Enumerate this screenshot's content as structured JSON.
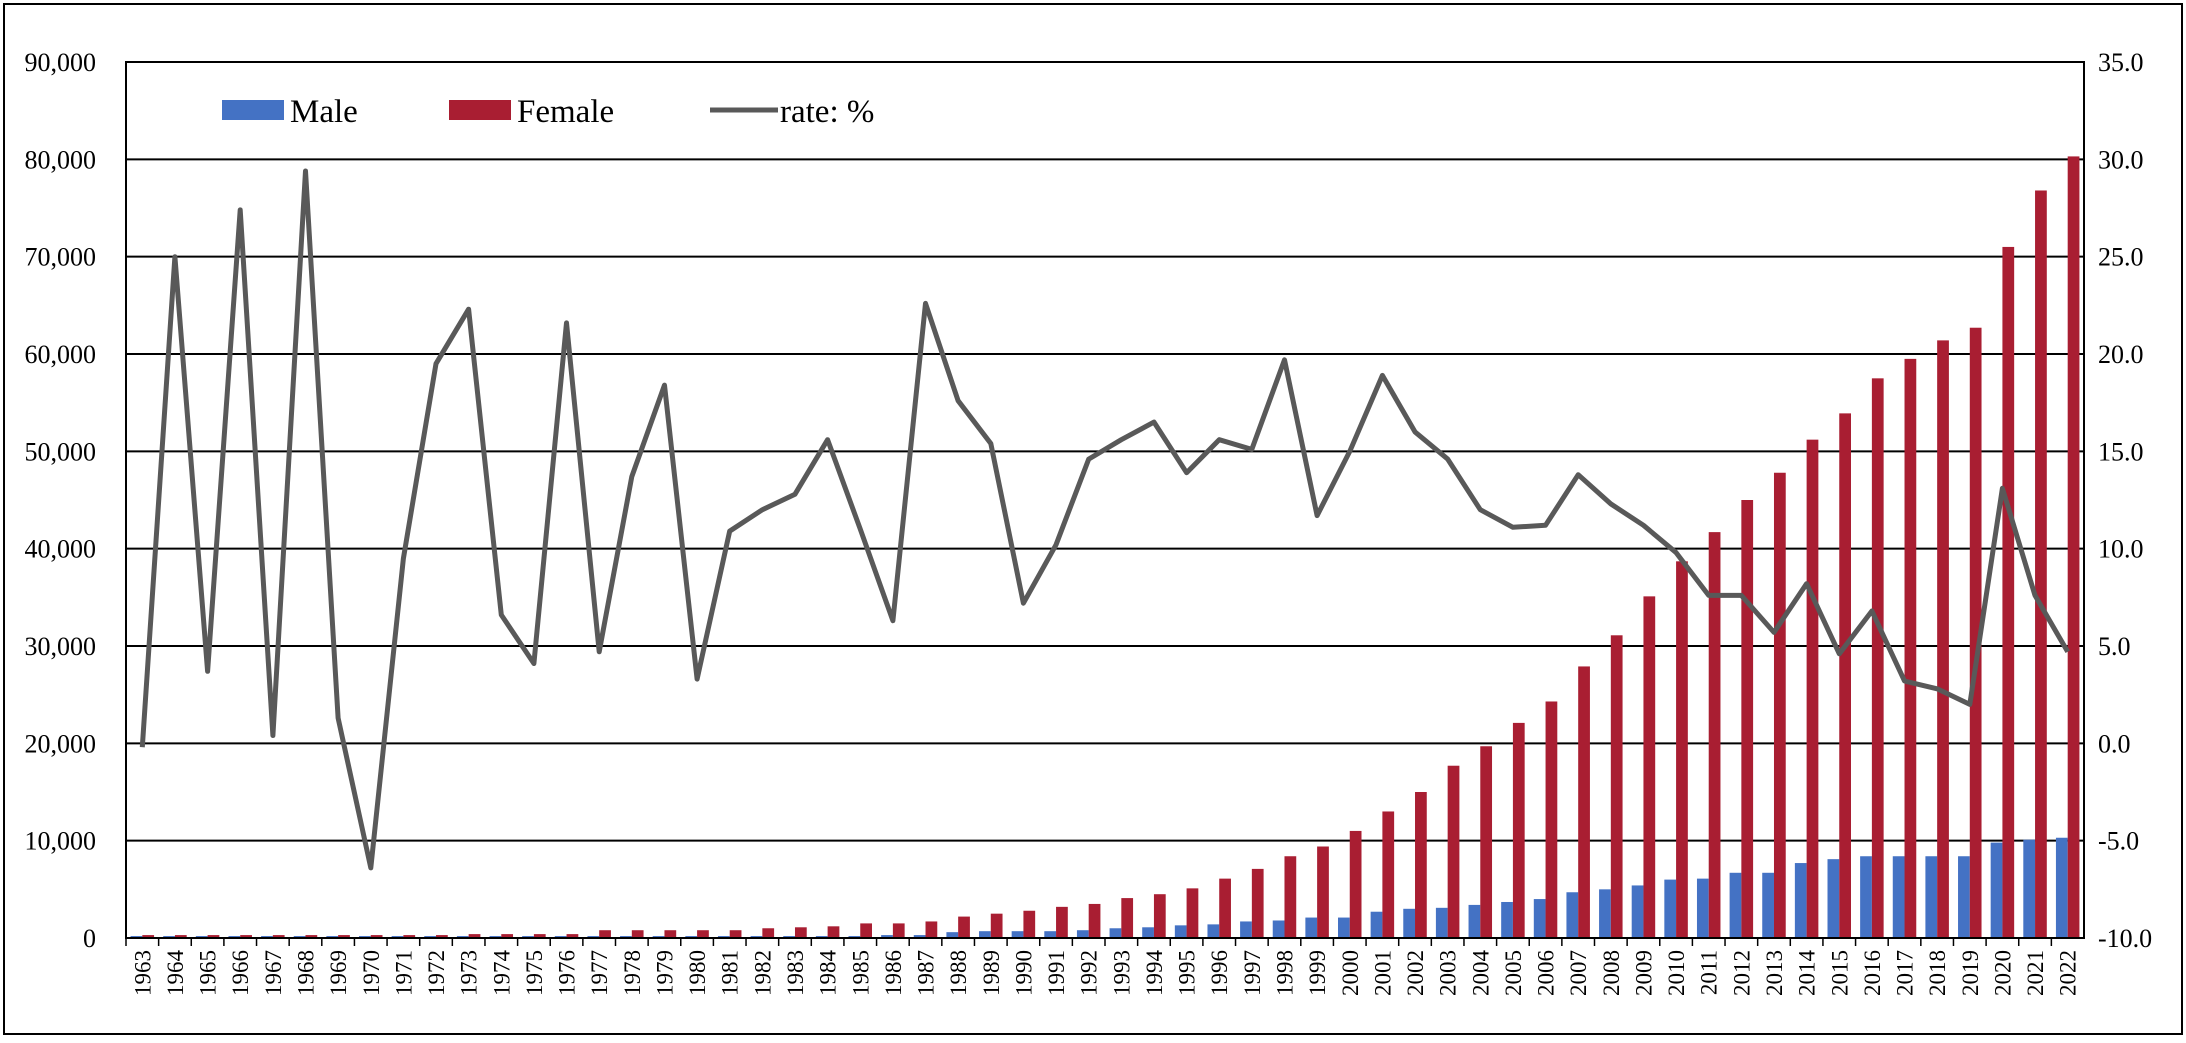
{
  "chart_data": {
    "type": "bar+line",
    "title": "",
    "xlabel": "",
    "ylabel": "",
    "y2label": "",
    "categories": [
      "1963",
      "1964",
      "1965",
      "1966",
      "1967",
      "1968",
      "1969",
      "1970",
      "1971",
      "1972",
      "1973",
      "1974",
      "1975",
      "1976",
      "1977",
      "1978",
      "1979",
      "1980",
      "1981",
      "1982",
      "1983",
      "1984",
      "1985",
      "1986",
      "1987",
      "1988",
      "1989",
      "1990",
      "1991",
      "1992",
      "1993",
      "1994",
      "1995",
      "1996",
      "1997",
      "1998",
      "1999",
      "2000",
      "2001",
      "2002",
      "2003",
      "2004",
      "2005",
      "2006",
      "2007",
      "2008",
      "2009",
      "2010",
      "2011",
      "2012",
      "2013",
      "2014",
      "2015",
      "2016",
      "2017",
      "2018",
      "2019",
      "2020",
      "2021",
      "2022"
    ],
    "series": [
      {
        "name": "Male",
        "type": "bar",
        "axis": "left",
        "color": "#4472C4",
        "values": [
          200,
          200,
          200,
          200,
          200,
          200,
          200,
          200,
          200,
          200,
          200,
          200,
          200,
          200,
          200,
          200,
          200,
          200,
          200,
          200,
          200,
          200,
          200,
          300,
          300,
          600,
          700,
          700,
          700,
          800,
          1000,
          1100,
          1300,
          1400,
          1700,
          1800,
          2100,
          2100,
          2700,
          3000,
          3100,
          3400,
          3700,
          4000,
          4700,
          5000,
          5400,
          6000,
          6100,
          6700,
          6700,
          7700,
          8100,
          8400,
          8400,
          8400,
          8400,
          9800,
          10100,
          10300
        ]
      },
      {
        "name": "Female",
        "type": "bar",
        "axis": "left",
        "color": "#A91E32",
        "values": [
          300,
          300,
          300,
          300,
          300,
          300,
          300,
          300,
          300,
          300,
          400,
          400,
          400,
          400,
          800,
          800,
          800,
          800,
          800,
          1000,
          1100,
          1200,
          1500,
          1500,
          1700,
          2200,
          2500,
          2800,
          3200,
          3500,
          4100,
          4500,
          5100,
          6100,
          7100,
          8400,
          9400,
          11000,
          13000,
          15000,
          17700,
          19700,
          22100,
          24300,
          27900,
          31100,
          35100,
          38700,
          41700,
          45000,
          47800,
          51200,
          53900,
          57500,
          59500,
          61400,
          62700,
          71000,
          76800,
          80300
        ]
      },
      {
        "name": "rate: %",
        "type": "line",
        "axis": "right",
        "color": "#595959",
        "values": [
          -0.2,
          25.0,
          3.7,
          27.4,
          0.4,
          29.4,
          1.3,
          -6.4,
          9.5,
          19.5,
          22.3,
          6.6,
          4.1,
          21.6,
          4.7,
          13.7,
          18.4,
          3.3,
          10.9,
          12.0,
          12.8,
          15.6,
          11.0,
          6.3,
          22.6,
          17.6,
          15.4,
          7.2,
          10.2,
          14.6,
          15.6,
          16.5,
          13.9,
          15.6,
          15.1,
          19.7,
          11.7,
          15.0,
          18.9,
          16.0,
          14.6,
          12.0,
          11.1,
          11.2,
          13.8,
          12.3,
          11.2,
          9.8,
          7.6,
          7.6,
          5.7,
          8.2,
          4.6,
          6.8,
          3.2,
          2.8,
          2.0,
          13.1,
          7.6,
          4.7
        ]
      }
    ],
    "y_left": {
      "min": 0,
      "max": 90000,
      "step": 10000,
      "ticks": [
        "0",
        "10,000",
        "20,000",
        "30,000",
        "40,000",
        "50,000",
        "60,000",
        "70,000",
        "80,000",
        "90,000"
      ]
    },
    "y_right": {
      "min": -10,
      "max": 35,
      "step": 5,
      "ticks": [
        "-10.0",
        "-5.0",
        "0.0",
        "5.0",
        "10.0",
        "15.0",
        "20.0",
        "25.0",
        "30.0",
        "35.0"
      ]
    },
    "grid": "horizontal",
    "legend": {
      "position": "top-left",
      "items": [
        "Male",
        "Female",
        "rate: %"
      ]
    }
  }
}
